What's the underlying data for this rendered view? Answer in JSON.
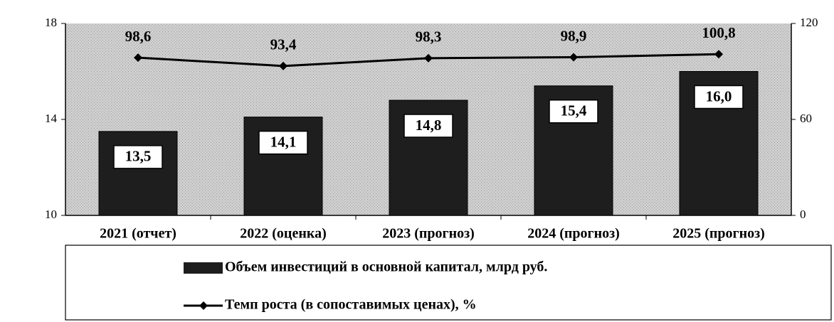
{
  "chart_data": {
    "type": "bar",
    "categories": [
      "2021 (отчет)",
      "2022 (оценка)",
      "2023 (прогноз)",
      "2024 (прогноз)",
      "2025 (прогноз)"
    ],
    "series": [
      {
        "name": "Объем инвестиций в основной капитал, млрд руб.",
        "type": "bar",
        "color": "#1e1e1e",
        "values": [
          13.5,
          14.1,
          14.8,
          15.4,
          16.0
        ],
        "value_labels": [
          "13,5",
          "14,1",
          "14,8",
          "15,4",
          "16,0"
        ]
      },
      {
        "name": "Темп роста (в сопоставимых ценах), %",
        "type": "line",
        "axis": "y2",
        "color": "#000000",
        "values": [
          98.6,
          93.4,
          98.3,
          98.9,
          100.8
        ],
        "value_labels": [
          "98,6",
          "93,4",
          "98,3",
          "98,9",
          "100,8"
        ]
      }
    ],
    "ylim": [
      10,
      18
    ],
    "yticks": [
      10,
      14,
      18
    ],
    "y2lim": [
      0,
      120
    ],
    "y2ticks": [
      0,
      60,
      120
    ]
  }
}
